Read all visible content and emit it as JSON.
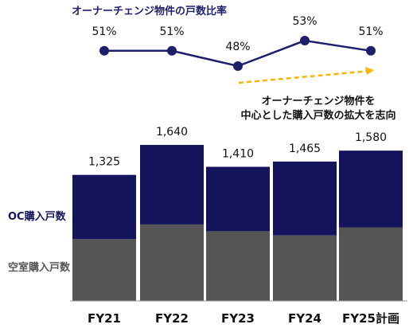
{
  "chart_data": [
    {
      "type": "line",
      "title": "オーナーチェンジ物件の戸数比率",
      "categories": [
        "FY21",
        "FY22",
        "FY23",
        "FY24",
        "FY25計画"
      ],
      "values": [
        51,
        51,
        48,
        53,
        51
      ],
      "value_labels": [
        "51%",
        "51%",
        "48%",
        "53%",
        "51%"
      ],
      "annotation": {
        "lines": [
          "オーナーチェンジ物件を",
          "中心とした購入戸数の拡大を志向"
        ],
        "arrow": "upward-trend",
        "arrow_color": "#f5b800"
      },
      "color": "#1d1f6b",
      "grid": false
    },
    {
      "type": "bar",
      "stacked": true,
      "categories": [
        "FY21",
        "FY22",
        "FY23",
        "FY24",
        "FY25計画"
      ],
      "totals": [
        1325,
        1640,
        1410,
        1465,
        1580
      ],
      "total_labels": [
        "1,325",
        "1,640",
        "1,410",
        "1,465",
        "1,580"
      ],
      "series": [
        {
          "name": "空室購入戸数",
          "values": [
            650,
            804,
            733,
            689,
            774
          ],
          "color": "#555555"
        },
        {
          "name": "OC購入戸数",
          "values": [
            675,
            836,
            677,
            776,
            806
          ],
          "color": "#14145c"
        }
      ],
      "legend_placement": "left",
      "grid": false
    }
  ]
}
